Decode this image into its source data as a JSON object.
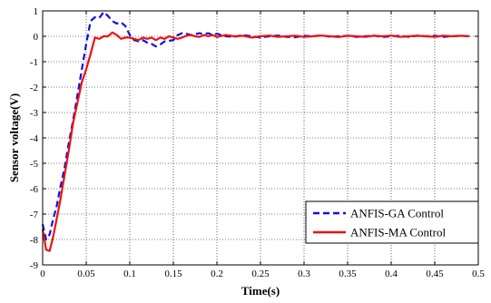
{
  "chart_data": {
    "type": "line",
    "title": "",
    "xlabel": "Time(s)",
    "ylabel": "Sensor voltage(V)",
    "xlim": [
      0,
      0.5
    ],
    "ylim": [
      -9,
      1
    ],
    "x_ticks": [
      0,
      0.05,
      0.1,
      0.15,
      0.2,
      0.25,
      0.3,
      0.35,
      0.4,
      0.45,
      0.5
    ],
    "x_tick_labels": [
      "0",
      "0.05",
      "0.1",
      "0.15",
      "0.2",
      "0.25",
      "0.3",
      "0.35",
      "0.4",
      "0.45",
      "0.5"
    ],
    "y_ticks": [
      1,
      0,
      -1,
      -2,
      -3,
      -4,
      -5,
      -6,
      -7,
      -8,
      -9
    ],
    "y_tick_labels": [
      "1",
      "0",
      "-1",
      "-2",
      "-3",
      "-4",
      "-5",
      "-6",
      "-7",
      "-8",
      "-9"
    ],
    "grid": true,
    "legend_position": "bottom-right",
    "series": [
      {
        "name": "ANFIS-GA Control",
        "color": "#1010e0",
        "line_style": "dashed",
        "x": [
          0,
          0.004,
          0.008,
          0.012,
          0.016,
          0.02,
          0.025,
          0.03,
          0.035,
          0.04,
          0.045,
          0.05,
          0.055,
          0.06,
          0.065,
          0.07,
          0.075,
          0.08,
          0.085,
          0.09,
          0.095,
          0.1,
          0.105,
          0.11,
          0.115,
          0.12,
          0.125,
          0.13,
          0.135,
          0.14,
          0.145,
          0.15,
          0.155,
          0.16,
          0.165,
          0.17,
          0.175,
          0.18,
          0.185,
          0.19,
          0.195,
          0.2,
          0.21,
          0.22,
          0.23,
          0.24,
          0.25,
          0.26,
          0.27,
          0.28,
          0.29,
          0.3,
          0.31,
          0.32,
          0.33,
          0.34,
          0.35,
          0.36,
          0.37,
          0.38,
          0.39,
          0.4,
          0.41,
          0.42,
          0.43,
          0.44,
          0.45,
          0.46,
          0.47,
          0.48,
          0.49
        ],
        "y": [
          -7.4,
          -8.0,
          -7.8,
          -7.2,
          -6.7,
          -6.0,
          -5.2,
          -4.2,
          -3.3,
          -2.3,
          -1.3,
          -0.3,
          0.6,
          0.75,
          0.72,
          0.95,
          0.8,
          0.6,
          0.5,
          0.55,
          0.4,
          0.05,
          -0.15,
          -0.2,
          -0.15,
          -0.25,
          -0.3,
          -0.4,
          -0.32,
          -0.2,
          -0.18,
          -0.15,
          0.05,
          0.12,
          0.1,
          0.05,
          0.08,
          0.12,
          0.08,
          0.12,
          0.05,
          0.1,
          0.0,
          -0.02,
          0.05,
          0.0,
          -0.05,
          0.0,
          0.03,
          -0.02,
          -0.04,
          0.02,
          0.0,
          0.04,
          -0.02,
          0.0,
          0.02,
          -0.02,
          0.0,
          0.03,
          -0.03,
          0.0,
          0.02,
          -0.02,
          0.02,
          0.0,
          0.02,
          -0.02,
          0.0,
          0.02,
          0.0
        ]
      },
      {
        "name": "ANFIS-MA Control",
        "color": "#ee1111",
        "line_style": "solid",
        "x": [
          0,
          0.004,
          0.008,
          0.012,
          0.016,
          0.02,
          0.025,
          0.03,
          0.035,
          0.04,
          0.045,
          0.05,
          0.055,
          0.06,
          0.065,
          0.07,
          0.075,
          0.08,
          0.085,
          0.09,
          0.095,
          0.1,
          0.105,
          0.11,
          0.115,
          0.12,
          0.125,
          0.13,
          0.135,
          0.14,
          0.145,
          0.15,
          0.155,
          0.16,
          0.165,
          0.17,
          0.175,
          0.18,
          0.185,
          0.19,
          0.195,
          0.2,
          0.21,
          0.22,
          0.23,
          0.24,
          0.25,
          0.26,
          0.27,
          0.28,
          0.29,
          0.3,
          0.31,
          0.32,
          0.33,
          0.34,
          0.35,
          0.36,
          0.37,
          0.38,
          0.39,
          0.4,
          0.41,
          0.42,
          0.43,
          0.44,
          0.45,
          0.46,
          0.47,
          0.48,
          0.49
        ],
        "y": [
          -7.6,
          -8.4,
          -8.45,
          -7.9,
          -7.2,
          -6.5,
          -5.5,
          -4.5,
          -3.4,
          -2.6,
          -1.8,
          -1.3,
          -0.7,
          -0.05,
          -0.1,
          0.0,
          0.0,
          0.15,
          0.05,
          -0.1,
          -0.05,
          -0.05,
          -0.1,
          -0.15,
          -0.05,
          -0.1,
          -0.05,
          -0.15,
          -0.05,
          -0.1,
          0.0,
          -0.05,
          -0.1,
          -0.05,
          0.02,
          0.05,
          0.0,
          -0.02,
          0.05,
          0.0,
          0.05,
          -0.03,
          0.05,
          0.0,
          0.02,
          -0.05,
          0.0,
          0.03,
          -0.02,
          0.0,
          0.02,
          -0.02,
          0.0,
          0.03,
          0.0,
          -0.03,
          0.02,
          0.0,
          -0.02,
          0.02,
          0.0,
          0.03,
          -0.02,
          0.0,
          0.02,
          0.0,
          -0.02,
          0.02,
          0.0,
          0.02,
          0.0
        ]
      }
    ]
  }
}
